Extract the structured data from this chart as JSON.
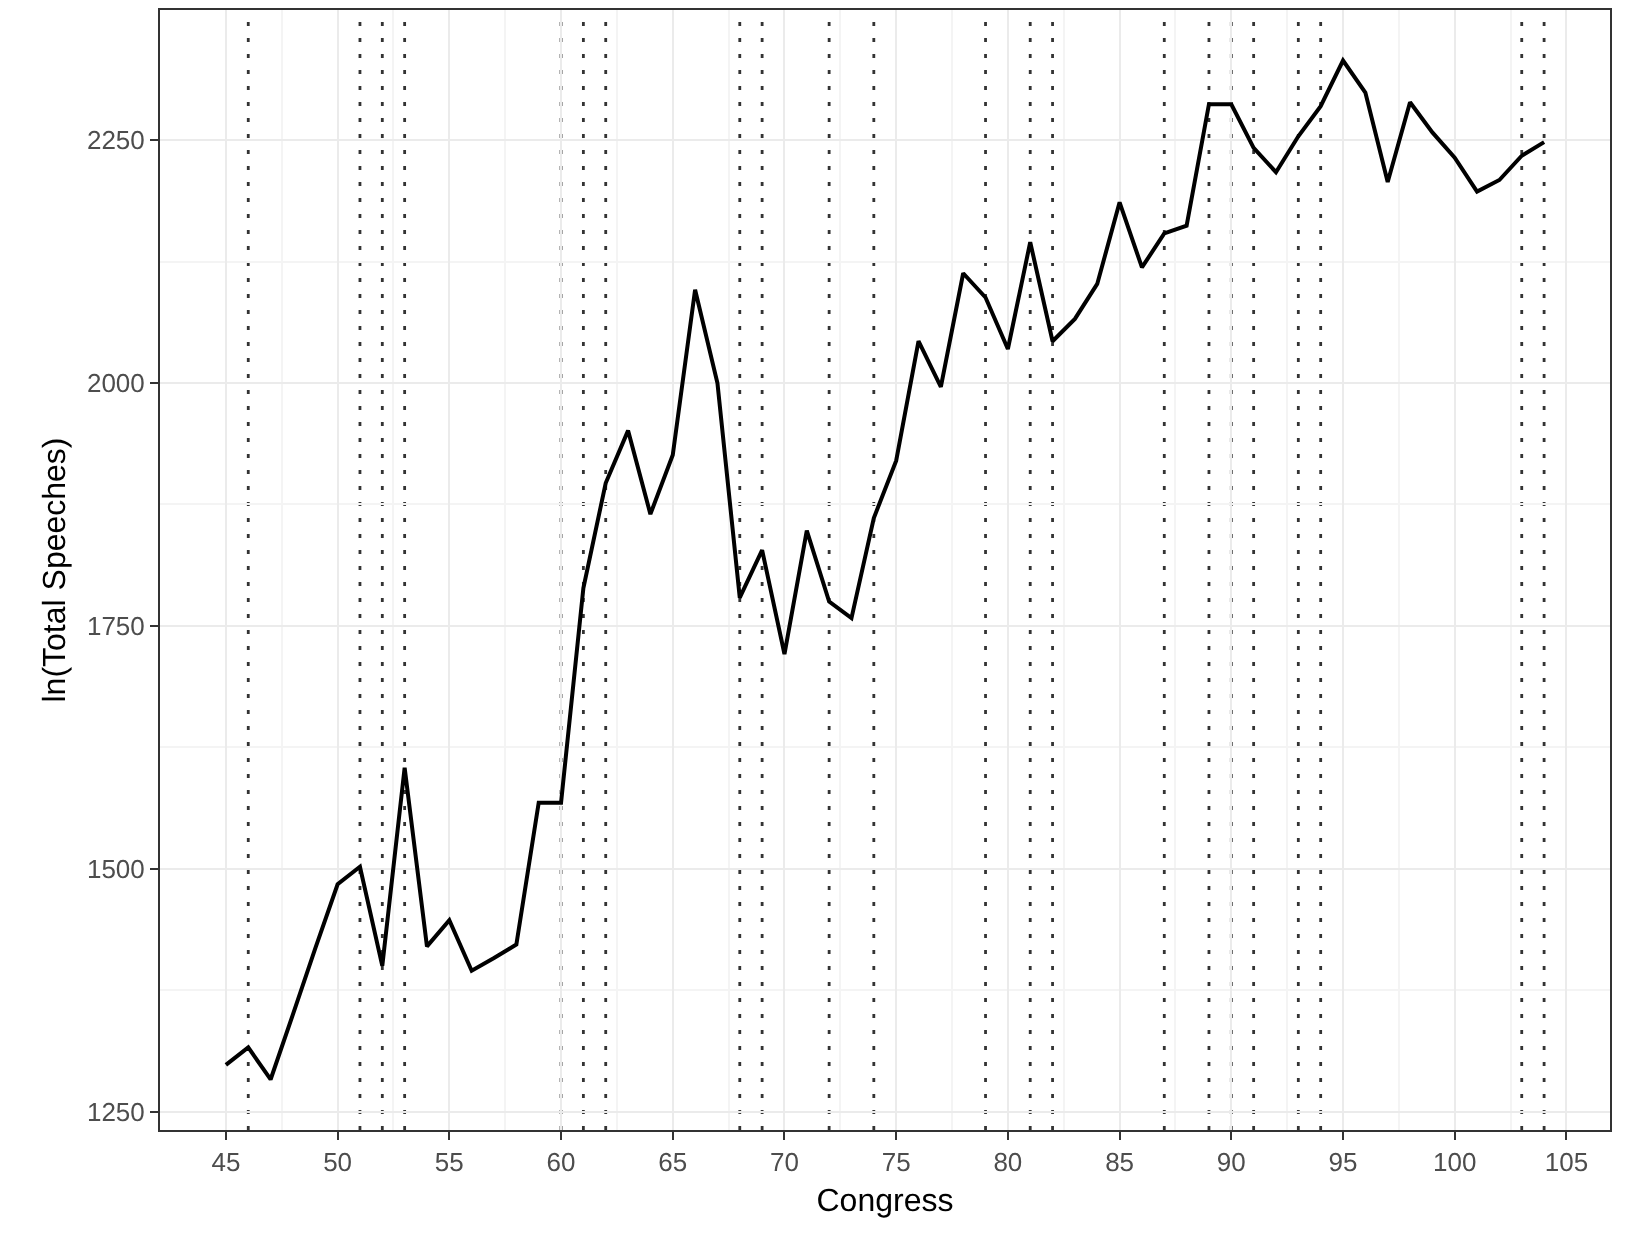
{
  "chart_data": {
    "type": "line",
    "xlabel": "Congress",
    "ylabel": "ln(Total Speeches)",
    "x": [
      45,
      46,
      47,
      48,
      49,
      50,
      51,
      52,
      53,
      54,
      55,
      56,
      57,
      58,
      59,
      60,
      61,
      62,
      63,
      64,
      65,
      66,
      67,
      68,
      69,
      70,
      71,
      72,
      73,
      74,
      75,
      76,
      77,
      78,
      79,
      80,
      81,
      82,
      83,
      84,
      85,
      86,
      87,
      88,
      89,
      90,
      91,
      92,
      93,
      94,
      95,
      96,
      97,
      98,
      99,
      100,
      101,
      102,
      103,
      104
    ],
    "series": [
      {
        "color": "#000000",
        "values": [
          1298,
          1316,
          1283,
          1350,
          1418,
          1484,
          1502,
          1400,
          1604,
          1420,
          1447,
          1395,
          1408,
          1422,
          1568,
          1568,
          1789,
          1897,
          1951,
          1865,
          1926,
          2096,
          2000,
          1779,
          1828,
          1721,
          1848,
          1775,
          1758,
          1861,
          1920,
          2043,
          1996,
          2113,
          2088,
          2035,
          2145,
          2043,
          2066,
          2102,
          2186,
          2119,
          2154,
          2162,
          2287,
          2287,
          2242,
          2217,
          2254,
          2285,
          2332,
          2299,
          2207,
          2289,
          2258,
          2232,
          2197,
          2209,
          2234,
          2248
        ]
      }
    ],
    "xlim": [
      42.05,
      106.95
    ],
    "ylim": [
      1231,
      2384
    ],
    "xticks": [
      45,
      50,
      55,
      60,
      65,
      70,
      75,
      80,
      85,
      90,
      95,
      100,
      105
    ],
    "yticks": [
      1250,
      1500,
      1750,
      2000,
      2250
    ],
    "grid": true,
    "marker": "none",
    "line_style": "solid",
    "ref_lines": [
      {
        "axis": "x",
        "value": 46,
        "line_style": "dotted",
        "color": "#333333"
      },
      {
        "axis": "x",
        "value": 51,
        "line_style": "dotted",
        "color": "#333333"
      },
      {
        "axis": "x",
        "value": 52,
        "line_style": "dotted",
        "color": "#333333"
      },
      {
        "axis": "x",
        "value": 53,
        "line_style": "dotted",
        "color": "#333333"
      },
      {
        "axis": "x",
        "value": 60,
        "line_style": "dotted",
        "color": "#333333"
      },
      {
        "axis": "x",
        "value": 61,
        "line_style": "dotted",
        "color": "#333333"
      },
      {
        "axis": "x",
        "value": 62,
        "line_style": "dotted",
        "color": "#333333"
      },
      {
        "axis": "x",
        "value": 68,
        "line_style": "dotted",
        "color": "#333333"
      },
      {
        "axis": "x",
        "value": 69,
        "line_style": "dotted",
        "color": "#333333"
      },
      {
        "axis": "x",
        "value": 72,
        "line_style": "dotted",
        "color": "#333333"
      },
      {
        "axis": "x",
        "value": 74,
        "line_style": "dotted",
        "color": "#333333"
      },
      {
        "axis": "x",
        "value": 79,
        "line_style": "dotted",
        "color": "#333333"
      },
      {
        "axis": "x",
        "value": 81,
        "line_style": "dotted",
        "color": "#333333"
      },
      {
        "axis": "x",
        "value": 82,
        "line_style": "dotted",
        "color": "#333333"
      },
      {
        "axis": "x",
        "value": 87,
        "line_style": "dotted",
        "color": "#333333"
      },
      {
        "axis": "x",
        "value": 89,
        "line_style": "dotted",
        "color": "#333333"
      },
      {
        "axis": "x",
        "value": 90,
        "line_style": "dotted",
        "color": "#333333"
      },
      {
        "axis": "x",
        "value": 91,
        "line_style": "dotted",
        "color": "#333333"
      },
      {
        "axis": "x",
        "value": 93,
        "line_style": "dotted",
        "color": "#333333"
      },
      {
        "axis": "x",
        "value": 94,
        "line_style": "dotted",
        "color": "#333333"
      },
      {
        "axis": "x",
        "value": 103,
        "line_style": "dotted",
        "color": "#333333"
      },
      {
        "axis": "x",
        "value": 104,
        "line_style": "dotted",
        "color": "#333333"
      }
    ]
  }
}
